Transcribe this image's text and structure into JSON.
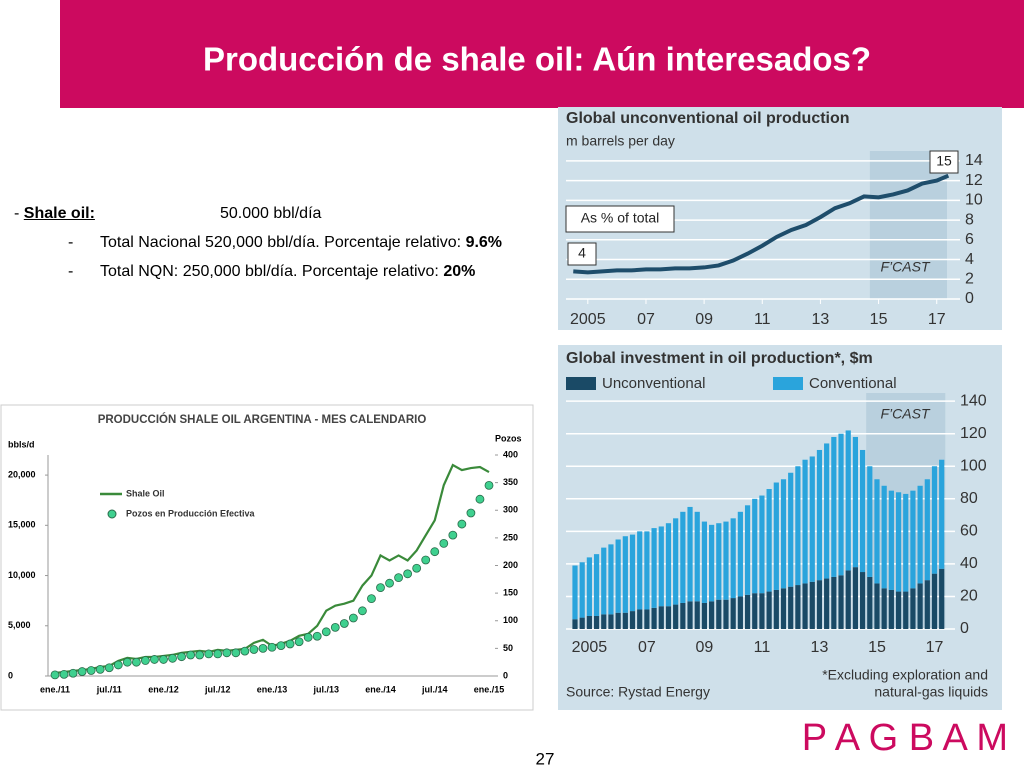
{
  "header": {
    "title": "Producción de shale oil: Aún interesados?"
  },
  "bullets": {
    "main": {
      "label": "Shale oil:",
      "value": "50.000 bbl/día"
    },
    "sub": [
      {
        "text": "Total Nacional 520,000 bbl/día. Porcentaje relativo: ",
        "bold": "9.6%"
      },
      {
        "text": "Total NQN: 250,000 bbl/día. Porcentaje relativo: ",
        "bold": "20%"
      }
    ]
  },
  "footer": {
    "logo": "P A G B A M",
    "page": "27"
  },
  "chart_data": [
    {
      "type": "line",
      "title": "PRODUCCIÓN SHALE OIL ARGENTINA - MES CALENDARIO",
      "ylabel": "bbls/d",
      "y2label": "Pozos",
      "categories": [
        "ene./11",
        null,
        null,
        null,
        null,
        null,
        "jul./11",
        null,
        null,
        null,
        null,
        null,
        "ene./12",
        null,
        null,
        null,
        null,
        null,
        "jul./12",
        null,
        null,
        null,
        null,
        null,
        "ene./13",
        null,
        null,
        null,
        null,
        null,
        "jul./13",
        null,
        null,
        null,
        null,
        null,
        "ene./14",
        null,
        null,
        null,
        null,
        null,
        "jul./14",
        null,
        null,
        null,
        null,
        null,
        "ene./15"
      ],
      "series": [
        {
          "name": "Shale Oil",
          "color": "#3a8a3a",
          "values": [
            300,
            400,
            500,
            600,
            700,
            900,
            1000,
            1500,
            1800,
            1700,
            1900,
            1900,
            2000,
            2100,
            2300,
            2400,
            2500,
            2400,
            2600,
            2500,
            2600,
            2700,
            3300,
            3600,
            3000,
            3200,
            3500,
            4000,
            4200,
            5000,
            6500,
            7000,
            7200,
            7500,
            9000,
            10000,
            12000,
            11500,
            12000,
            11500,
            12500,
            14000,
            15500,
            19000,
            21000,
            20500,
            20700,
            20800,
            20300
          ]
        },
        {
          "name": "Pozos en Producción Efectiva",
          "color": "#3fd08f",
          "marker": "circle",
          "axis": "y2",
          "values": [
            2,
            3,
            5,
            8,
            10,
            12,
            15,
            20,
            25,
            25,
            28,
            30,
            30,
            32,
            35,
            38,
            38,
            40,
            40,
            42,
            42,
            45,
            48,
            50,
            52,
            55,
            58,
            62,
            70,
            72,
            80,
            88,
            95,
            105,
            118,
            140,
            160,
            168,
            178,
            185,
            195,
            210,
            225,
            240,
            255,
            275,
            295,
            320,
            345
          ]
        }
      ],
      "ylim": [
        0,
        22000
      ],
      "yticks": [
        0,
        {
          "value": 5000,
          "label": "5,000"
        },
        {
          "value": 10000,
          "label": "10,000"
        },
        {
          "value": 15000,
          "label": "15,000"
        },
        {
          "value": 20000,
          "label": "20,000"
        }
      ],
      "y2lim": [
        0,
        400
      ],
      "y2ticks": [
        0,
        50,
        100,
        150,
        200,
        250,
        300,
        350,
        400
      ],
      "legend": "upper-left"
    },
    {
      "type": "line",
      "title": "Global unconventional oil production",
      "subtitle": "m barrels per day",
      "x": [
        2004.5,
        2005,
        2005.5,
        2006,
        2006.5,
        2007,
        2007.5,
        2008,
        2008.5,
        2009,
        2009.5,
        2010,
        2010.5,
        2011,
        2011.5,
        2012,
        2012.5,
        2013,
        2013.5,
        2014,
        2014.5,
        2015,
        2015.5,
        2016,
        2016.5,
        2017,
        2017.4
      ],
      "series": [
        {
          "color": "#1e4d6b",
          "values": [
            2.8,
            2.7,
            2.8,
            2.9,
            2.9,
            3.0,
            3.0,
            3.1,
            3.1,
            3.2,
            3.4,
            3.9,
            4.6,
            5.4,
            6.3,
            7.0,
            7.5,
            8.3,
            9.2,
            9.7,
            10.4,
            10.3,
            10.6,
            11.0,
            11.7,
            12.0,
            12.5
          ]
        }
      ],
      "xlim": [
        2004.25,
        2017.8
      ],
      "xticks": [
        2005,
        {
          "value": 2007,
          "label": "07"
        },
        {
          "value": 2009,
          "label": "09"
        },
        {
          "value": 2011,
          "label": "11"
        },
        {
          "value": 2013,
          "label": "13"
        },
        {
          "value": 2015,
          "label": "15"
        },
        {
          "value": 2017,
          "label": "17"
        }
      ],
      "ylim": [
        0,
        15
      ],
      "yticks": [
        0,
        2,
        4,
        6,
        8,
        10,
        12,
        14
      ],
      "grid": true,
      "forecast_from": 2014.7,
      "annotations": [
        "As % of total",
        "4",
        "15",
        "F’CAST"
      ]
    },
    {
      "type": "bar",
      "stacked": true,
      "title": "Global investment in oil production*, $m",
      "categories": [
        null,
        null,
        "2005",
        null,
        null,
        null,
        null,
        null,
        null,
        null,
        "07",
        null,
        null,
        null,
        null,
        null,
        null,
        null,
        "09",
        null,
        null,
        null,
        null,
        null,
        null,
        null,
        "11",
        null,
        null,
        null,
        null,
        null,
        null,
        null,
        "13",
        null,
        null,
        null,
        null,
        null,
        null,
        null,
        "15",
        null,
        null,
        null,
        null,
        null,
        null,
        null,
        "17",
        null
      ],
      "series": [
        {
          "name": "Unconventional",
          "color": "#1a4a66",
          "values": [
            6,
            7,
            8,
            8,
            9,
            9,
            10,
            10,
            11,
            12,
            12,
            13,
            14,
            14,
            15,
            16,
            17,
            17,
            16,
            17,
            18,
            18,
            19,
            20,
            21,
            22,
            22,
            23,
            24,
            25,
            26,
            27,
            28,
            29,
            30,
            31,
            32,
            33,
            36,
            38,
            35,
            32,
            28,
            25,
            24,
            23,
            23,
            25,
            28,
            30,
            34,
            37
          ]
        },
        {
          "name": "Conventional",
          "color": "#2aa4dc",
          "values": [
            33,
            34,
            36,
            38,
            41,
            43,
            45,
            47,
            47,
            48,
            48,
            49,
            49,
            51,
            53,
            56,
            58,
            55,
            50,
            47,
            47,
            48,
            49,
            52,
            55,
            58,
            60,
            63,
            66,
            67,
            70,
            73,
            76,
            77,
            80,
            83,
            86,
            87,
            86,
            80,
            75,
            68,
            64,
            63,
            61,
            61,
            60,
            60,
            60,
            62,
            66,
            67
          ]
        }
      ],
      "ylim": [
        0,
        145
      ],
      "yticks": [
        0,
        20,
        40,
        60,
        80,
        100,
        120,
        140
      ],
      "grid": true,
      "forecast_from": 41,
      "annotations": [
        "F’CAST"
      ],
      "notes": [
        "*Excluding exploration and",
        "natural-gas liquids"
      ],
      "source": "Source: Rystad Energy",
      "legend": "top"
    }
  ]
}
